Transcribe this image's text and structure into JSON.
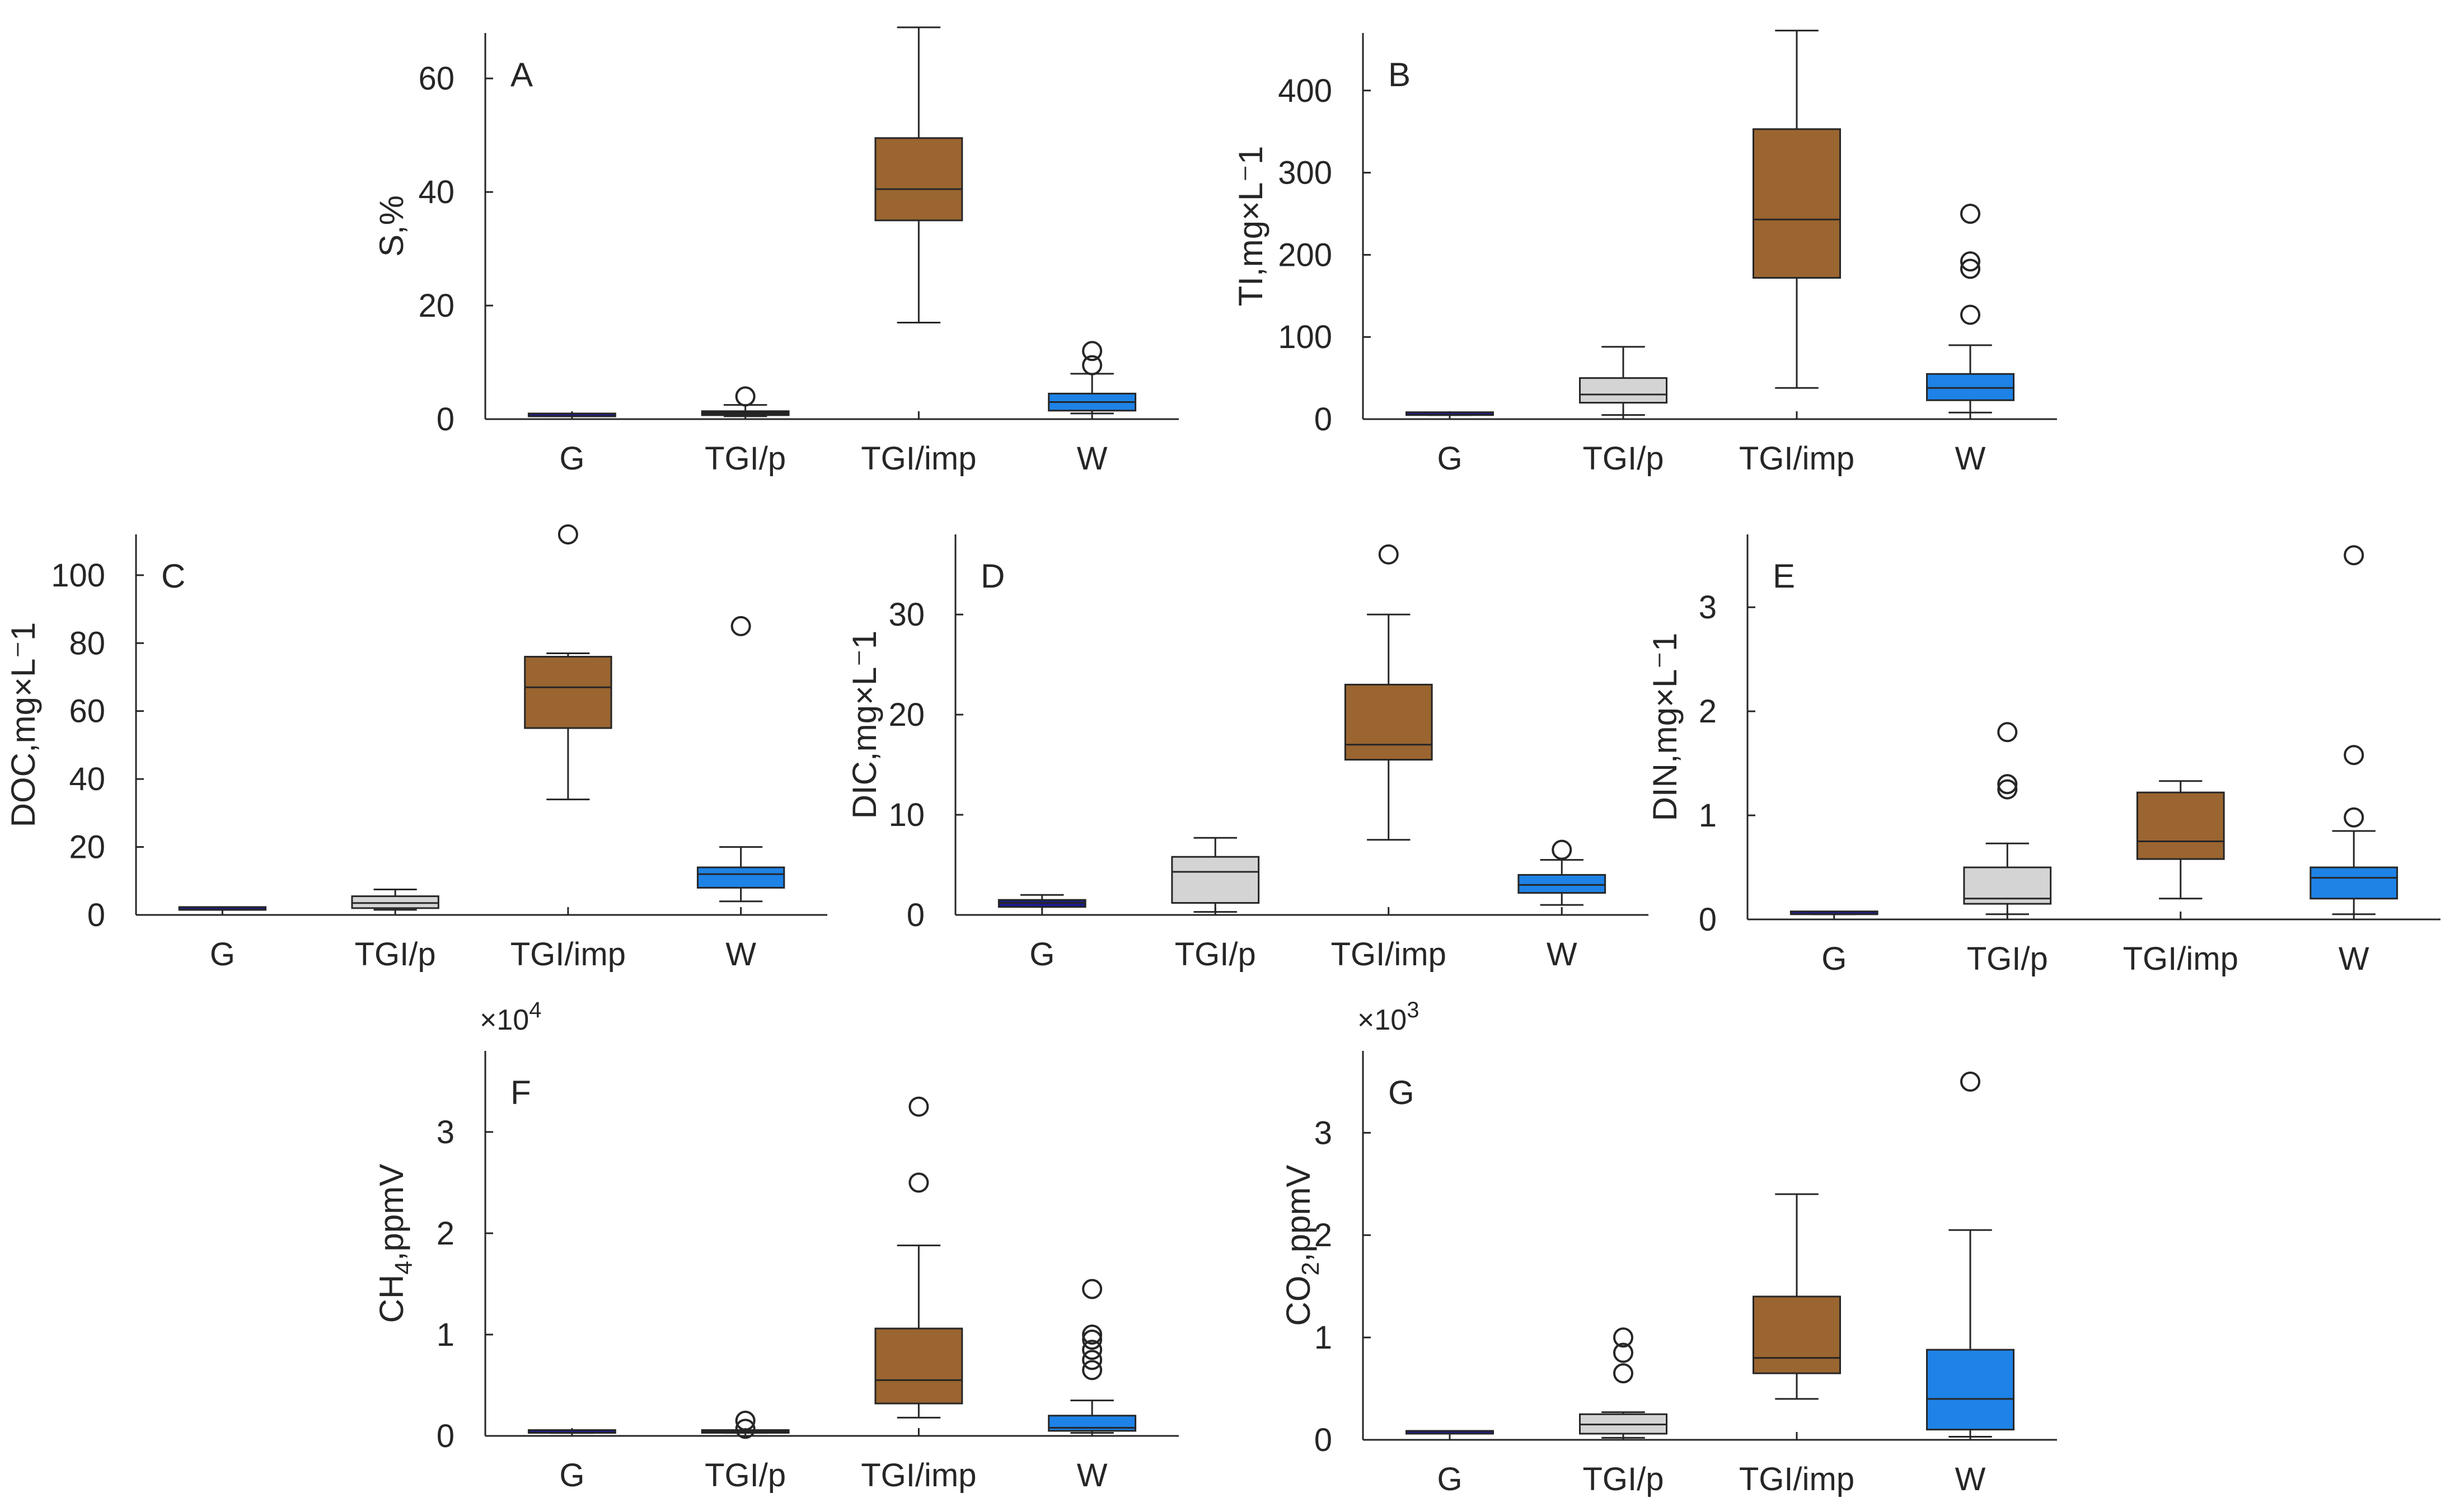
{
  "chart_data": [
    {
      "type": "box",
      "panel": "A",
      "title": "",
      "ylabel": "S,%",
      "ylim": [
        0,
        68
      ],
      "yticks": [
        0,
        20,
        40,
        60
      ],
      "yticklabels": [
        "0",
        "20",
        "40",
        "60"
      ],
      "categories": [
        "G",
        "TGI/p",
        "TGI/imp",
        "W"
      ],
      "colors": [
        "#1c1c8c",
        "#1f1f1f",
        "#9a6530",
        "#1e82e6"
      ],
      "boxes": [
        {
          "category": "G",
          "whislo": 0.5,
          "q1": 0.5,
          "med": 0.5,
          "q3": 0.5,
          "whishi": 0.5,
          "outliers": []
        },
        {
          "category": "TGI/p",
          "whislo": 0.5,
          "q1": 0.7,
          "med": 1.0,
          "q3": 1.4,
          "whishi": 2.5,
          "outliers": [
            4.0
          ]
        },
        {
          "category": "TGI/imp",
          "whislo": 17,
          "q1": 35,
          "med": 40.5,
          "q3": 49.5,
          "whishi": 69,
          "outliers": []
        },
        {
          "category": "W",
          "whislo": 1.0,
          "q1": 1.5,
          "med": 3.0,
          "q3": 4.5,
          "whishi": 8,
          "outliers": [
            9.5,
            12
          ]
        }
      ]
    },
    {
      "type": "box",
      "panel": "B",
      "title": "",
      "ylabel": "TI,mg×L⁻1",
      "ylim": [
        0,
        470
      ],
      "yticks": [
        0,
        100,
        200,
        300,
        400
      ],
      "yticklabels": [
        "0",
        "100",
        "200",
        "300",
        "400"
      ],
      "categories": [
        "G",
        "TGI/p",
        "TGI/imp",
        "W"
      ],
      "colors": [
        "#1c1c8c",
        "#d4d4d4",
        "#9a6530",
        "#1e82e6"
      ],
      "boxes": [
        {
          "category": "G",
          "whislo": 5,
          "q1": 5,
          "med": 5,
          "q3": 5,
          "whishi": 5,
          "outliers": []
        },
        {
          "category": "TGI/p",
          "whislo": 5,
          "q1": 20,
          "med": 30,
          "q3": 50,
          "whishi": 88,
          "outliers": []
        },
        {
          "category": "TGI/imp",
          "whislo": 38,
          "q1": 172,
          "med": 243,
          "q3": 353,
          "whishi": 473,
          "outliers": []
        },
        {
          "category": "W",
          "whislo": 8,
          "q1": 23,
          "med": 38,
          "q3": 55,
          "whishi": 90,
          "outliers": [
            127,
            183,
            192,
            250
          ]
        }
      ]
    },
    {
      "type": "box",
      "panel": "C",
      "title": "",
      "ylabel": "DOC,mg×L⁻1",
      "ylim": [
        0,
        112
      ],
      "yticks": [
        0,
        20,
        40,
        60,
        80,
        100
      ],
      "yticklabels": [
        "0",
        "20",
        "40",
        "60",
        "80",
        "100"
      ],
      "categories": [
        "G",
        "TGI/p",
        "TGI/imp",
        "W"
      ],
      "colors": [
        "#1c1c8c",
        "#d4d4d4",
        "#9a6530",
        "#1e82e6"
      ],
      "boxes": [
        {
          "category": "G",
          "whislo": 1.5,
          "q1": 1.5,
          "med": 1.5,
          "q3": 1.5,
          "whishi": 1.5,
          "outliers": []
        },
        {
          "category": "TGI/p",
          "whislo": 1.5,
          "q1": 2.0,
          "med": 3.5,
          "q3": 5.5,
          "whishi": 7.5,
          "outliers": []
        },
        {
          "category": "TGI/imp",
          "whislo": 34,
          "q1": 55,
          "med": 67,
          "q3": 76,
          "whishi": 77,
          "outliers": [
            112
          ]
        },
        {
          "category": "W",
          "whislo": 4,
          "q1": 8,
          "med": 12,
          "q3": 14,
          "whishi": 20,
          "outliers": [
            85
          ]
        }
      ]
    },
    {
      "type": "box",
      "panel": "D",
      "title": "",
      "ylabel": "DIC,mg×L⁻1",
      "ylim": [
        0,
        38
      ],
      "yticks": [
        0,
        10,
        20,
        30
      ],
      "yticklabels": [
        "0",
        "10",
        "20",
        "30"
      ],
      "categories": [
        "G",
        "TGI/p",
        "TGI/imp",
        "W"
      ],
      "colors": [
        "#1c1c8c",
        "#d4d4d4",
        "#9a6530",
        "#1e82e6"
      ],
      "boxes": [
        {
          "category": "G",
          "whislo": 0.8,
          "q1": 0.8,
          "med": 1.2,
          "q3": 1.5,
          "whishi": 2.0,
          "outliers": []
        },
        {
          "category": "TGI/p",
          "whislo": 0.3,
          "q1": 1.2,
          "med": 4.3,
          "q3": 5.8,
          "whishi": 7.7,
          "outliers": []
        },
        {
          "category": "TGI/imp",
          "whislo": 7.5,
          "q1": 15.5,
          "med": 17,
          "q3": 23,
          "whishi": 30,
          "outliers": [
            36
          ]
        },
        {
          "category": "W",
          "whislo": 1.0,
          "q1": 2.2,
          "med": 3.0,
          "q3": 4.0,
          "whishi": 5.5,
          "outliers": [
            6.5
          ]
        }
      ]
    },
    {
      "type": "box",
      "panel": "E",
      "title": "",
      "ylabel": "DIN,mg×L⁻1",
      "ylim": [
        0,
        3.7
      ],
      "yticks": [
        0,
        1,
        2,
        3
      ],
      "yticklabels": [
        "0",
        "1",
        "2",
        "3"
      ],
      "categories": [
        "G",
        "TGI/p",
        "TGI/imp",
        "W"
      ],
      "colors": [
        "#1c1c8c",
        "#d4d4d4",
        "#9a6530",
        "#1e82e6"
      ],
      "boxes": [
        {
          "category": "G",
          "whislo": 0.05,
          "q1": 0.05,
          "med": 0.05,
          "q3": 0.05,
          "whishi": 0.05,
          "outliers": []
        },
        {
          "category": "TGI/p",
          "whislo": 0.05,
          "q1": 0.15,
          "med": 0.2,
          "q3": 0.5,
          "whishi": 0.73,
          "outliers": [
            1.25,
            1.3,
            1.8
          ]
        },
        {
          "category": "TGI/imp",
          "whislo": 0.2,
          "q1": 0.58,
          "med": 0.75,
          "q3": 1.22,
          "whishi": 1.33,
          "outliers": []
        },
        {
          "category": "W",
          "whislo": 0.05,
          "q1": 0.2,
          "med": 0.4,
          "q3": 0.5,
          "whishi": 0.85,
          "outliers": [
            0.98,
            1.58,
            3.5
          ]
        }
      ]
    },
    {
      "type": "box",
      "panel": "F",
      "title": "",
      "ylabel": "CH4,ppmV",
      "ylabel_main": "CH",
      "ylabel_sub": "4",
      "ylabel_tail": ",ppmV",
      "exponent_base": "×10",
      "exponent": "4",
      "scale": 10000,
      "ylim": [
        0,
        38000
      ],
      "yticks": [
        0,
        10000,
        20000,
        30000
      ],
      "yticklabels": [
        "0",
        "1",
        "2",
        "3"
      ],
      "categories": [
        "G",
        "TGI/p",
        "TGI/imp",
        "W"
      ],
      "colors": [
        "#1c1c8c",
        "#1f1f1f",
        "#9a6530",
        "#1e82e6"
      ],
      "boxes": [
        {
          "category": "G",
          "whislo": 300,
          "q1": 300,
          "med": 300,
          "q3": 300,
          "whishi": 300,
          "outliers": []
        },
        {
          "category": "TGI/p",
          "whislo": 300,
          "q1": 300,
          "med": 400,
          "q3": 500,
          "whishi": 500,
          "outliers": [
            700,
            1500
          ]
        },
        {
          "category": "TGI/imp",
          "whislo": 1800,
          "q1": 3200,
          "med": 5500,
          "q3": 10600,
          "whishi": 18800,
          "outliers": [
            25000,
            32500
          ]
        },
        {
          "category": "W",
          "whislo": 300,
          "q1": 500,
          "med": 800,
          "q3": 2000,
          "whishi": 3500,
          "outliers": [
            6500,
            7500,
            8500,
            9500,
            10000,
            14500
          ]
        }
      ]
    },
    {
      "type": "box",
      "panel": "G",
      "title": "",
      "ylabel": "CO2,ppmV",
      "ylabel_main": "CO",
      "ylabel_sub": "2",
      "ylabel_tail": ",ppmV",
      "exponent_base": "×10",
      "exponent": "3",
      "scale": 1000,
      "ylim": [
        0,
        3800
      ],
      "yticks": [
        0,
        1000,
        2000,
        3000
      ],
      "yticklabels": [
        "0",
        "1",
        "2",
        "3"
      ],
      "categories": [
        "G",
        "TGI/p",
        "TGI/imp",
        "W"
      ],
      "colors": [
        "#1c1c8c",
        "#d4d4d4",
        "#9a6530",
        "#1e82e6"
      ],
      "boxes": [
        {
          "category": "G",
          "whislo": 60,
          "q1": 60,
          "med": 60,
          "q3": 60,
          "whishi": 60,
          "outliers": []
        },
        {
          "category": "TGI/p",
          "whislo": 20,
          "q1": 60,
          "med": 150,
          "q3": 250,
          "whishi": 270,
          "outliers": [
            650,
            850,
            1000
          ]
        },
        {
          "category": "TGI/imp",
          "whislo": 400,
          "q1": 650,
          "med": 800,
          "q3": 1400,
          "whishi": 2400,
          "outliers": []
        },
        {
          "category": "W",
          "whislo": 30,
          "q1": 100,
          "med": 400,
          "q3": 880,
          "whishi": 2050,
          "outliers": [
            3500
          ]
        }
      ]
    }
  ]
}
